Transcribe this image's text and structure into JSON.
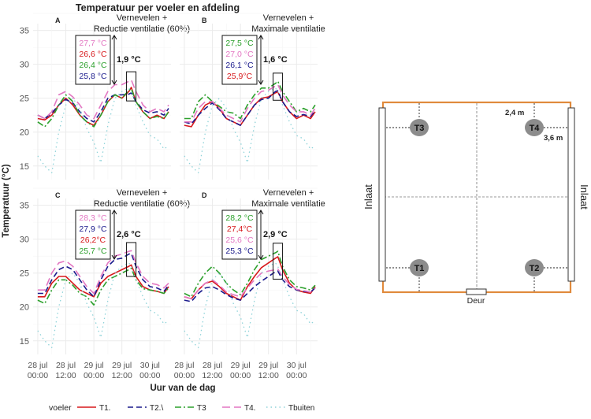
{
  "title": "Temperatuur per voeler en afdeling",
  "ylabel": "Temperatuur (°C)",
  "xlabel": "Uur van de dag",
  "ylim": [
    13,
    36
  ],
  "yticks": [
    15,
    20,
    25,
    30,
    35
  ],
  "xticks": [
    {
      "l1": "28 jul",
      "l2": "00:00",
      "h": 0
    },
    {
      "l1": "28 jul",
      "l2": "12:00",
      "h": 12
    },
    {
      "l1": "29 jul",
      "l2": "00:00",
      "h": 24
    },
    {
      "l1": "29 jul",
      "l2": "12:00",
      "h": 36
    },
    {
      "l1": "30 jul",
      "l2": "00:00",
      "h": 48
    }
  ],
  "legend": {
    "title": "voeler",
    "items": [
      {
        "name": "T1.",
        "color": "#d7191c",
        "dash": ""
      },
      {
        "name": "T2.\\",
        "color": "#1a1a8c",
        "dash": "7 4"
      },
      {
        "name": "T3",
        "color": "#2ca02c",
        "dash": "8 3 2 3"
      },
      {
        "name": "T4.",
        "color": "#e377c2",
        "dash": "10 5"
      },
      {
        "name": "Tbuiten",
        "color": "#8fd3d9",
        "dash": "1.5 4"
      }
    ]
  },
  "chart_data": [
    {
      "type": "line",
      "panel": "A",
      "subtitle": [
        "Vernevelen +",
        "Reductie ventilatie (60%)"
      ],
      "delta": "1,9 °C",
      "labels": [
        {
          "text": "27,7 °C",
          "color": "#e377c2"
        },
        {
          "text": "26,6 °C",
          "color": "#d7191c"
        },
        {
          "text": "26,4 °C",
          "color": "#2ca02c"
        },
        {
          "text": "25,8 °C",
          "color": "#1a1a8c"
        }
      ],
      "peak_hour": 40,
      "x": [
        0,
        3,
        6,
        9,
        12,
        15,
        18,
        21,
        24,
        27,
        30,
        33,
        36,
        39,
        40,
        42,
        45,
        48,
        51,
        54,
        56
      ],
      "series": [
        {
          "name": "T1.",
          "values": [
            22,
            21.8,
            22.5,
            24,
            25,
            24,
            22.5,
            21.5,
            21,
            22.5,
            24.5,
            25.5,
            25,
            26,
            26.6,
            24.5,
            23,
            22,
            22.5,
            22,
            23
          ]
        },
        {
          "name": "T2.\\",
          "values": [
            22.5,
            22,
            22.8,
            24,
            24.8,
            24.3,
            23,
            22,
            21.5,
            23,
            25,
            25.5,
            25.5,
            25.6,
            25.8,
            24.5,
            23.3,
            22.8,
            23,
            22.5,
            23.5
          ]
        },
        {
          "name": "T3",
          "values": [
            21.5,
            20.8,
            22,
            24,
            25.5,
            24.5,
            22.5,
            21.5,
            20.8,
            22.5,
            24.5,
            25.5,
            25,
            26.2,
            26.4,
            24.5,
            23,
            22,
            22.3,
            22,
            23
          ]
        },
        {
          "name": "T4.",
          "values": [
            22.5,
            22,
            23,
            25.5,
            26,
            25.2,
            24,
            22.5,
            22,
            24,
            26,
            27,
            27,
            27.5,
            27.7,
            26,
            24,
            23,
            23.5,
            23,
            24
          ]
        },
        {
          "name": "Tbuiten",
          "values": [
            16.5,
            15,
            14,
            20,
            24,
            25,
            23.5,
            20.5,
            18.5,
            15.5,
            21,
            25,
            26,
            26.5,
            26,
            24,
            21.5,
            19.5,
            19,
            17.5,
            18
          ]
        }
      ]
    },
    {
      "type": "line",
      "panel": "B",
      "subtitle": [
        "Vernevelen +",
        "Maximale ventilatie"
      ],
      "delta": "1,6 °C",
      "labels": [
        {
          "text": "27,5 °C",
          "color": "#2ca02c"
        },
        {
          "text": "27,0 °C",
          "color": "#e377c2"
        },
        {
          "text": "26,1 °C",
          "color": "#1a1a8c"
        },
        {
          "text": "25,9°C",
          "color": "#d7191c"
        }
      ],
      "peak_hour": 40,
      "x": [
        0,
        3,
        6,
        9,
        12,
        15,
        18,
        21,
        24,
        27,
        30,
        33,
        36,
        39,
        40,
        42,
        45,
        48,
        51,
        54,
        56
      ],
      "series": [
        {
          "name": "T1.",
          "values": [
            21,
            20.8,
            22.5,
            24,
            24.5,
            23.5,
            22,
            21.5,
            21,
            22.5,
            24,
            25,
            25.2,
            25.8,
            25.9,
            24.5,
            23,
            22,
            22.5,
            22,
            23
          ]
        },
        {
          "name": "T2.\\",
          "values": [
            21.5,
            21.2,
            22.5,
            23.5,
            24.3,
            23.3,
            22,
            21.5,
            21,
            22.5,
            24,
            24.8,
            25,
            26,
            26.1,
            24.5,
            23,
            22.3,
            22.6,
            22.3,
            23.2
          ]
        },
        {
          "name": "T3",
          "values": [
            22,
            22,
            24.5,
            25.5,
            24.5,
            23.8,
            23,
            22.8,
            22,
            24,
            25.5,
            26.5,
            26.5,
            27.2,
            27.5,
            26,
            24.5,
            23,
            23.5,
            23,
            24
          ]
        },
        {
          "name": "T4.",
          "values": [
            21.5,
            21.5,
            23.5,
            24.5,
            24.5,
            23.5,
            22.5,
            22,
            21.5,
            23.5,
            25,
            26,
            26.2,
            26.8,
            27,
            25.5,
            24,
            23,
            23,
            22.5,
            23.5
          ]
        },
        {
          "name": "Tbuiten",
          "values": [
            16.5,
            15,
            14,
            20,
            24,
            25,
            23.5,
            20.5,
            18.5,
            15.5,
            21,
            25,
            26,
            26.5,
            26,
            24,
            21.5,
            19.5,
            19,
            17.5,
            18
          ]
        }
      ]
    },
    {
      "type": "line",
      "panel": "C",
      "subtitle": [
        "Vernevelen +",
        "Reductie ventilatie (60%)"
      ],
      "delta": "2,6 °C",
      "labels": [
        {
          "text": "28,3 °C",
          "color": "#e377c2"
        },
        {
          "text": "27,9 °C",
          "color": "#1a1a8c"
        },
        {
          "text": "26,2°C",
          "color": "#d7191c"
        },
        {
          "text": "25,7 °C",
          "color": "#2ca02c"
        }
      ],
      "peak_hour": 40,
      "x": [
        0,
        3,
        6,
        9,
        12,
        15,
        18,
        21,
        24,
        27,
        30,
        33,
        36,
        39,
        40,
        42,
        45,
        48,
        51,
        54,
        56
      ],
      "series": [
        {
          "name": "T1.",
          "values": [
            21.5,
            21.5,
            23.5,
            24.5,
            24.5,
            23.5,
            22.5,
            22,
            21.5,
            23.5,
            24.5,
            25,
            25.5,
            26,
            26.2,
            24.5,
            23,
            22.5,
            22.3,
            22,
            23
          ]
        },
        {
          "name": "T2.\\",
          "values": [
            22,
            22,
            24,
            25.5,
            26,
            25.5,
            24,
            22.5,
            21.5,
            24,
            26,
            27,
            27.2,
            27.8,
            27.9,
            26,
            24,
            23,
            22.8,
            22.3,
            23.2
          ]
        },
        {
          "name": "T3",
          "values": [
            21,
            20.5,
            22.5,
            24,
            24,
            23.2,
            22,
            21.5,
            20.3,
            22.5,
            24,
            24.5,
            25,
            25.5,
            25.7,
            24,
            22.7,
            22.5,
            22.3,
            22,
            22.8
          ]
        },
        {
          "name": "T4.",
          "values": [
            22.5,
            22.5,
            25,
            26.5,
            26.8,
            26,
            24.5,
            23,
            22,
            24.5,
            26.5,
            27.5,
            27.8,
            28.2,
            28.3,
            26.5,
            24.5,
            23.5,
            23.3,
            22.8,
            23.5
          ]
        },
        {
          "name": "Tbuiten",
          "values": [
            16.5,
            15,
            14,
            20,
            24,
            25,
            23.5,
            20.5,
            18.5,
            15.5,
            21,
            25,
            26,
            26.5,
            26,
            24,
            21.5,
            19.5,
            19,
            17.5,
            18
          ]
        }
      ]
    },
    {
      "type": "line",
      "panel": "D",
      "subtitle": [
        "Vernevelen +",
        "Maximale ventilatie"
      ],
      "delta": "2,9 °C",
      "labels": [
        {
          "text": "28,2 °C",
          "color": "#2ca02c"
        },
        {
          "text": "27,4°C",
          "color": "#d7191c"
        },
        {
          "text": "25,6 °C",
          "color": "#e377c2"
        },
        {
          "text": "25,3 °C",
          "color": "#1a1a8c"
        }
      ],
      "peak_hour": 40,
      "x": [
        0,
        3,
        6,
        9,
        12,
        15,
        18,
        21,
        24,
        27,
        30,
        33,
        36,
        39,
        40,
        42,
        45,
        48,
        51,
        54,
        56
      ],
      "series": [
        {
          "name": "T1.",
          "values": [
            21.5,
            21.2,
            22.5,
            23.5,
            23.8,
            23,
            22,
            21.5,
            21,
            23,
            24.5,
            25.8,
            26.5,
            27.2,
            27.4,
            25.5,
            23.5,
            22.5,
            22.2,
            22,
            23
          ]
        },
        {
          "name": "T2.\\",
          "values": [
            21,
            20.8,
            22,
            22.8,
            23,
            22.5,
            21.8,
            21.3,
            21,
            22,
            23,
            23.8,
            24.5,
            25.2,
            25.3,
            24,
            23,
            22.5,
            22.3,
            22.2,
            22.8
          ]
        },
        {
          "name": "T3",
          "values": [
            22,
            21.5,
            23.5,
            25,
            26,
            25,
            23.5,
            22.5,
            21.8,
            23.5,
            25.5,
            27,
            27.5,
            28,
            28.2,
            26,
            24,
            23,
            22.8,
            22.5,
            23.2
          ]
        },
        {
          "name": "T4.",
          "values": [
            21.5,
            21.2,
            22.5,
            23.5,
            24,
            23.2,
            22.2,
            21.8,
            21.5,
            22.8,
            24,
            25,
            25.3,
            25.5,
            25.6,
            24.5,
            23.3,
            22.6,
            22.4,
            22.2,
            22.8
          ]
        },
        {
          "name": "Tbuiten",
          "values": [
            16.5,
            15,
            14,
            20,
            24,
            25,
            23.5,
            20.5,
            18.5,
            15.5,
            21,
            25,
            26,
            26.5,
            26,
            24,
            21.5,
            19.5,
            19,
            17.5,
            18
          ]
        }
      ]
    }
  ],
  "floorplan": {
    "sensors": [
      "T1",
      "T2",
      "T3",
      "T4"
    ],
    "dim_vertical": "2,4 m",
    "dim_horizontal": "3,6 m",
    "inlet_left": "Inlaat",
    "inlet_right": "Inlaat",
    "door": "Deur",
    "wall_color": "#e08a3c",
    "sensor_color": "#8c8c8c"
  }
}
